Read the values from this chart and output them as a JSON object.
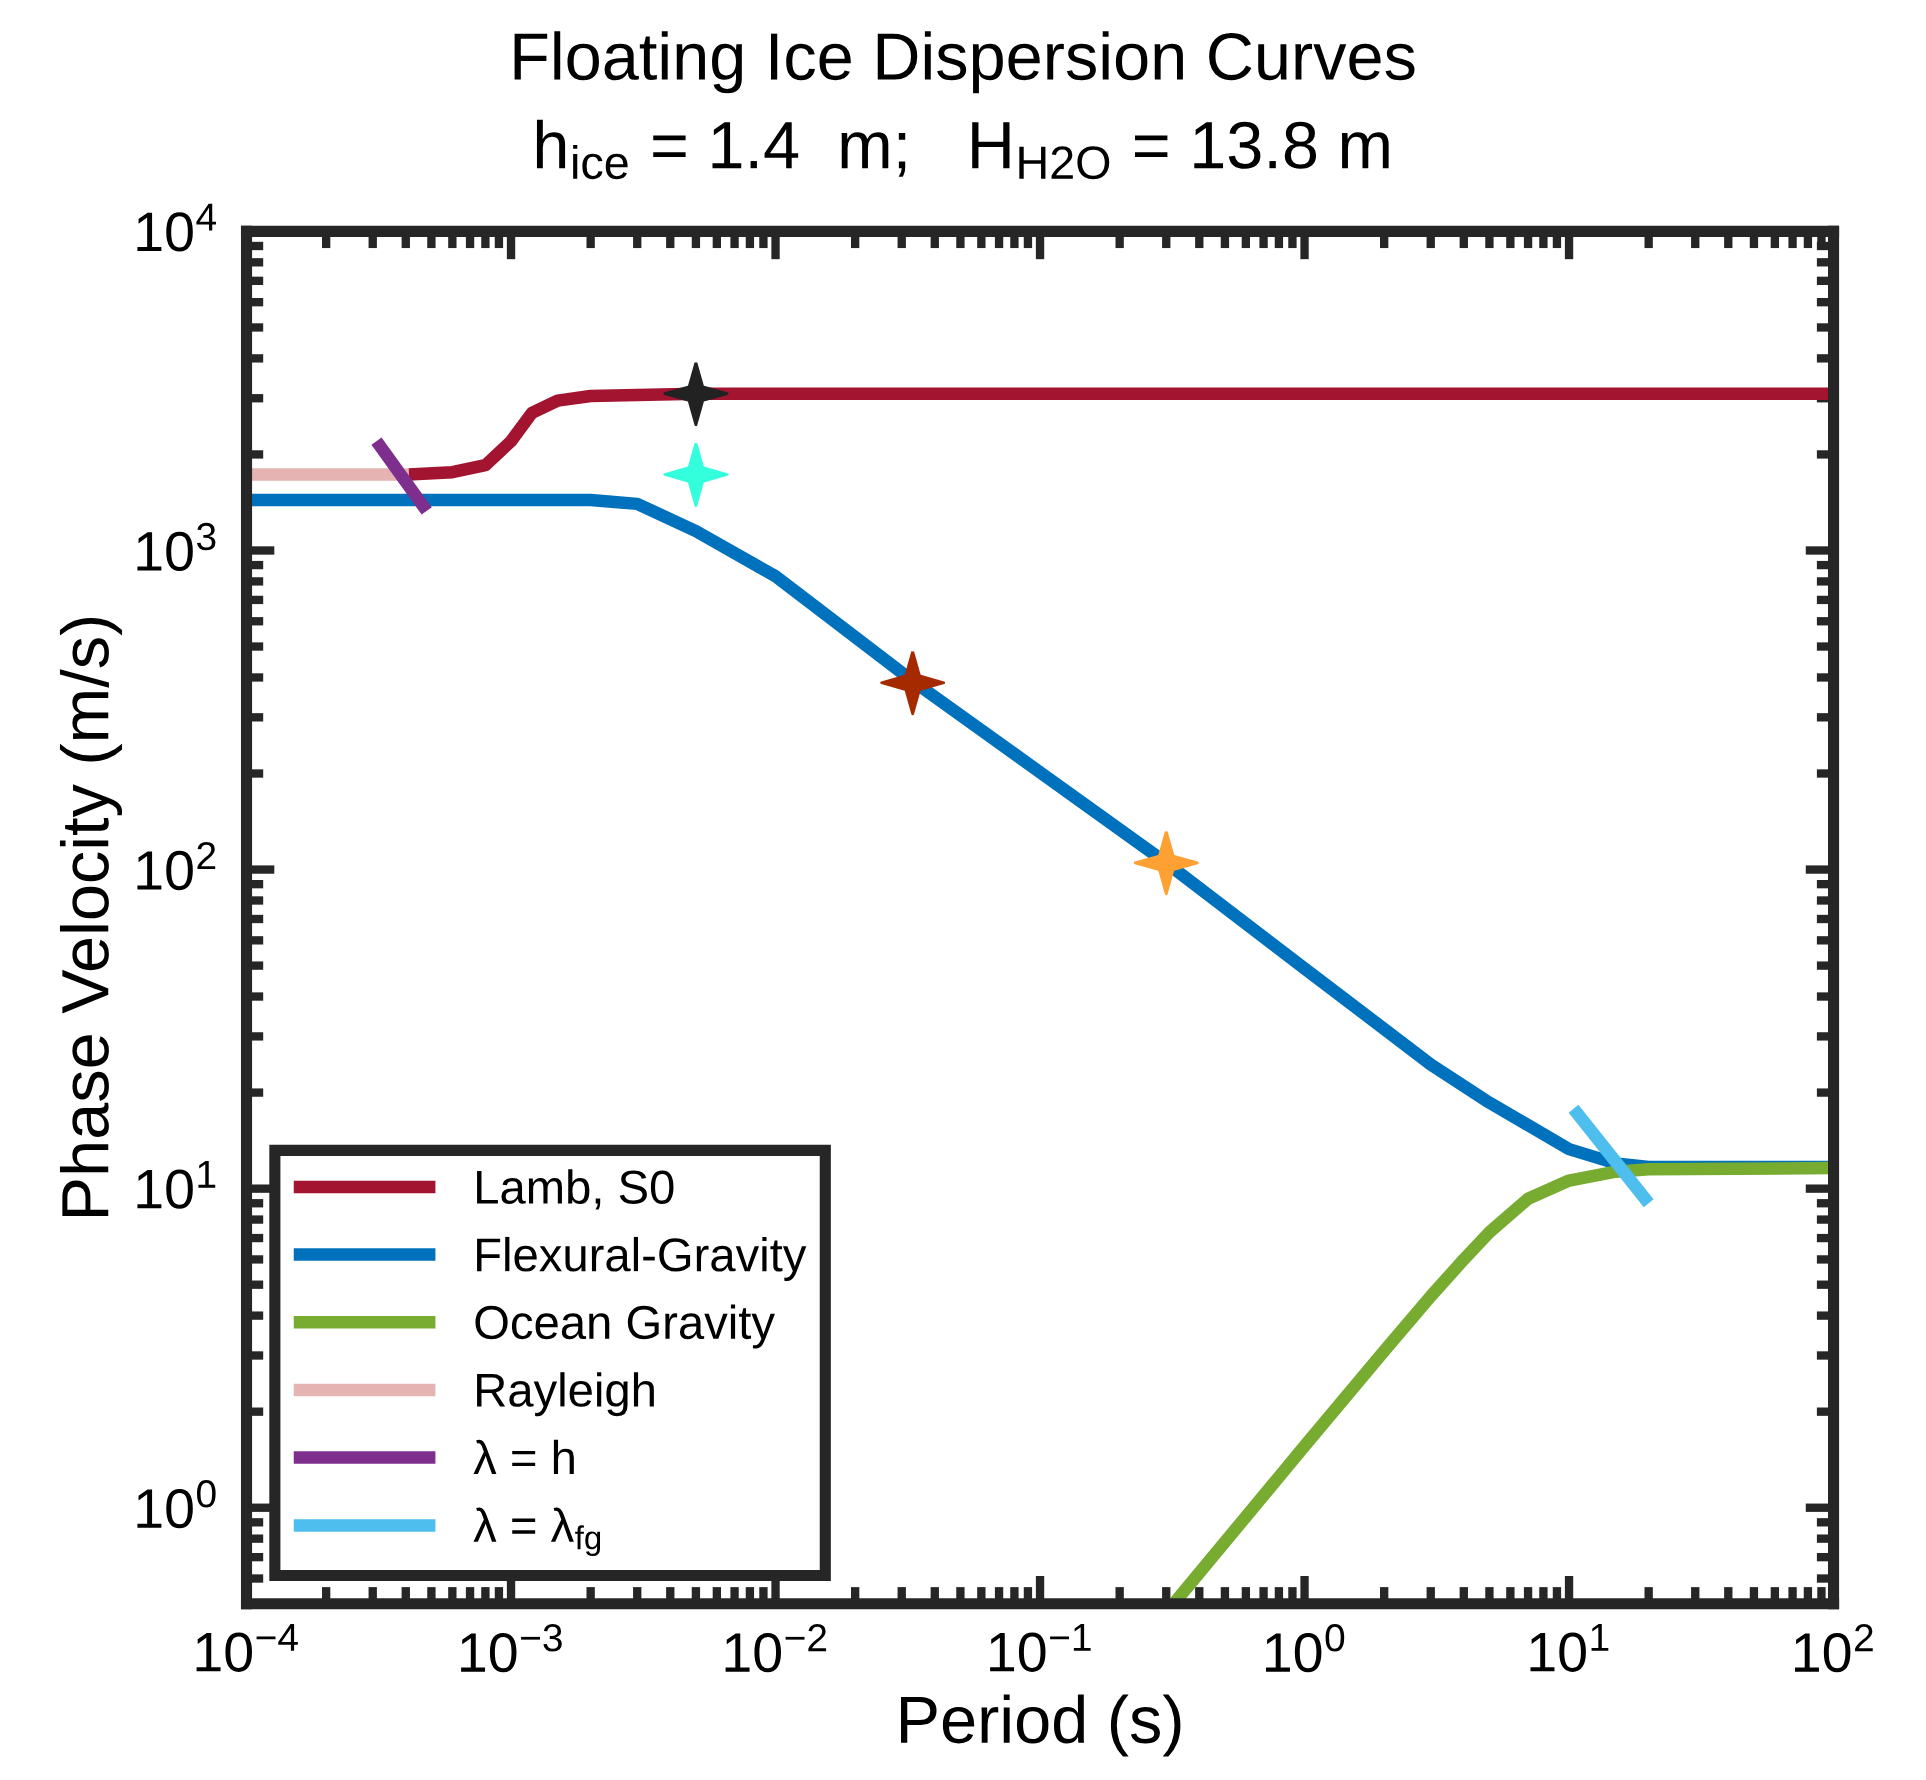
{
  "chart_data": {
    "type": "line",
    "title": "Floating Ice Dispersion Curves",
    "subtitle": "h$_{ice}$ = 1.4  m;   H$_{H2O}$ = 13.8 m",
    "xlabel": "Period (s)",
    "ylabel": "Phase Velocity (m/s)",
    "log": "xy",
    "grid": false,
    "legend": "bottom left",
    "line_style": "solid",
    "xlim": [
      0.0001,
      100
    ],
    "ylim": [
      0.5,
      10000
    ],
    "xticks": [
      {
        "value": 0.0001,
        "label": "10$^{−4}$"
      },
      {
        "value": 0.001,
        "label": "10$^{−3}$"
      },
      {
        "value": 0.01,
        "label": "10$^{−2}$"
      },
      {
        "value": 0.1,
        "label": "10$^{−1}$"
      },
      {
        "value": 1,
        "label": "10$^{0}$"
      },
      {
        "value": 10,
        "label": "10$^{1}$"
      },
      {
        "value": 100,
        "label": "10$^{2}$"
      }
    ],
    "yticks": [
      {
        "value": 1,
        "label": "10$^{0}$"
      },
      {
        "value": 10,
        "label": "10$^{1}$"
      },
      {
        "value": 100,
        "label": "10$^{2}$"
      },
      {
        "value": 1000,
        "label": "10$^{3}$"
      },
      {
        "value": 10000,
        "label": "10$^{4}$"
      }
    ],
    "series": [
      {
        "name": "Lamb, S0",
        "color": "#a2142f",
        "x": [
          0.00041,
          0.0006,
          0.0008,
          0.001,
          0.0012,
          0.0015,
          0.002,
          0.005,
          100
        ],
        "values": [
          1730,
          1760,
          1850,
          2200,
          2700,
          2950,
          3050,
          3100,
          3100
        ]
      },
      {
        "name": "Flexural-Gravity",
        "color": "#0072bd",
        "x": [
          0.0001,
          0.002,
          0.003,
          0.005,
          0.01,
          0.033,
          0.3,
          1,
          3,
          5,
          10,
          15,
          20,
          100
        ],
        "values": [
          1440,
          1440,
          1400,
          1150,
          830,
          390,
          105,
          49,
          24.5,
          18.6,
          13.3,
          12.0,
          11.7,
          11.7
        ]
      },
      {
        "name": "Ocean Gravity",
        "color": "#77ac30",
        "x": [
          0.32,
          1,
          2,
          3,
          4,
          5,
          7,
          10,
          15,
          20,
          100
        ],
        "values": [
          0.5,
          1.56,
          3.1,
          4.6,
          6.0,
          7.3,
          9.3,
          10.6,
          11.3,
          11.5,
          11.6
        ]
      },
      {
        "name": "Rayleigh",
        "color": "#e6b3b3",
        "x": [
          0.0001,
          0.00041
        ],
        "values": [
          1730,
          1730
        ]
      },
      {
        "name": "λ = h",
        "color": "#7e2f8e",
        "x": [
          0.00031,
          0.00048
        ],
        "values": [
          2200,
          1330
        ]
      },
      {
        "name": "λ = λ$_{fg}$",
        "color": "#4dbeee",
        "x": [
          10.4,
          20
        ],
        "values": [
          17.8,
          9.0
        ]
      },
      {
        "type": "scatter",
        "marker": "star",
        "color": "#222222",
        "x": [
          0.005
        ],
        "values": [
          3100
        ]
      },
      {
        "type": "scatter",
        "marker": "star",
        "color": "#33ffdd",
        "x": [
          0.005
        ],
        "values": [
          1730
        ]
      },
      {
        "type": "scatter",
        "marker": "star",
        "color": "#a52a00",
        "x": [
          0.033
        ],
        "values": [
          385
        ]
      },
      {
        "type": "scatter",
        "marker": "star",
        "color": "#ffa033",
        "x": [
          0.3
        ],
        "values": [
          105
        ]
      }
    ]
  }
}
